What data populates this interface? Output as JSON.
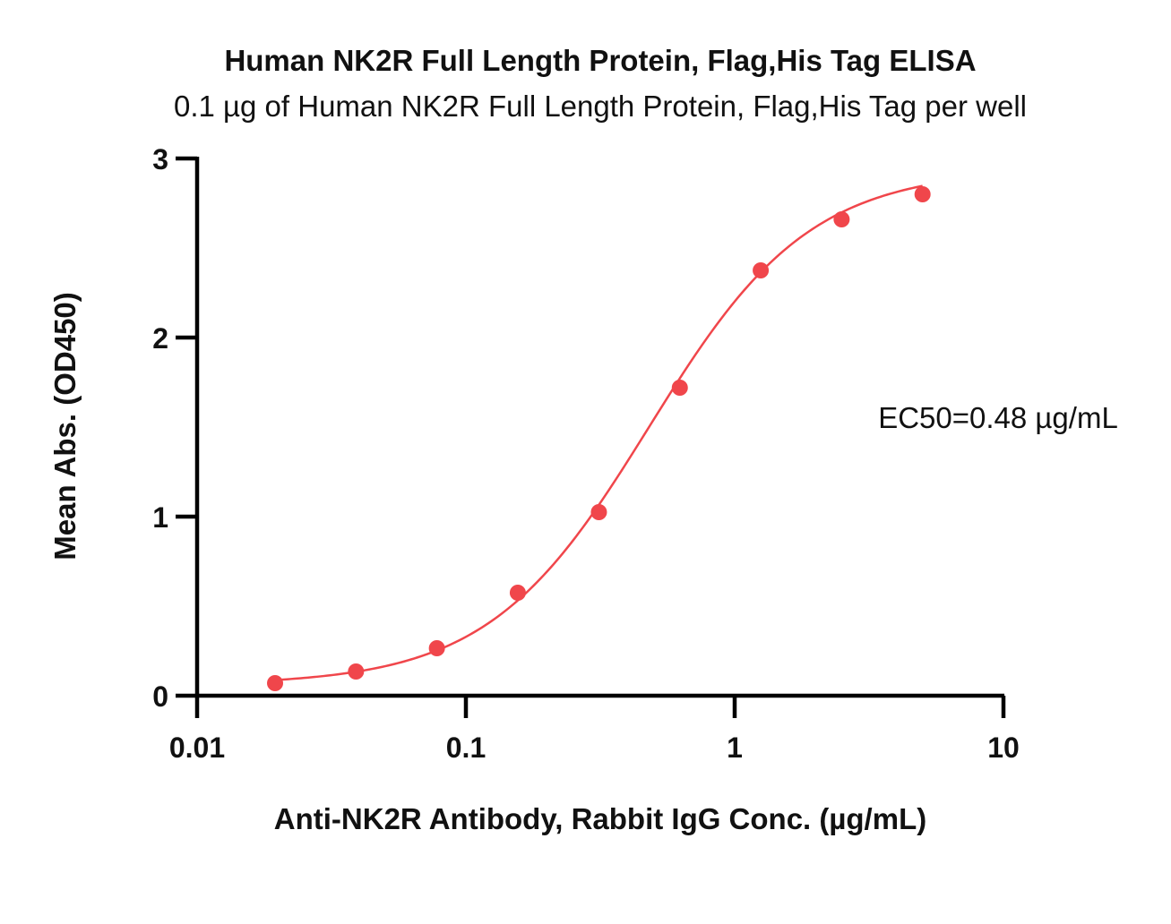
{
  "chart_data": {
    "type": "scatter",
    "title": "Human NK2R Full Length Protein, Flag,His Tag ELISA",
    "subtitle": "0.1 µg of Human NK2R Full Length Protein, Flag,His Tag per well",
    "xlabel": "Anti-NK2R Antibody, Rabbit IgG Conc. (µg/mL)",
    "ylabel": "Mean Abs. (OD450)",
    "x_scale": "log",
    "xlim": [
      0.01,
      10
    ],
    "ylim": [
      0,
      3
    ],
    "x_ticks": [
      {
        "value": 0.01,
        "label": "0.01"
      },
      {
        "value": 0.1,
        "label": "0.1"
      },
      {
        "value": 1,
        "label": "1"
      },
      {
        "value": 10,
        "label": "10"
      }
    ],
    "y_ticks": [
      {
        "value": 0,
        "label": "0"
      },
      {
        "value": 1,
        "label": "1"
      },
      {
        "value": 2,
        "label": "2"
      },
      {
        "value": 3,
        "label": "3"
      }
    ],
    "grid": false,
    "legend": "none",
    "annotation": "EC50=0.48 µg/mL",
    "color": "#f0464b",
    "fit": {
      "model": "4PL",
      "bottom": 0.06,
      "top": 2.94,
      "ec50": 0.48,
      "hill": 1.45
    },
    "series": [
      {
        "x": [
          0.0195,
          0.039,
          0.078,
          0.156,
          0.3125,
          0.625,
          1.25,
          2.5,
          5
        ],
        "y": [
          0.07,
          0.135,
          0.265,
          0.575,
          1.025,
          1.72,
          2.375,
          2.66,
          2.8
        ]
      }
    ]
  }
}
